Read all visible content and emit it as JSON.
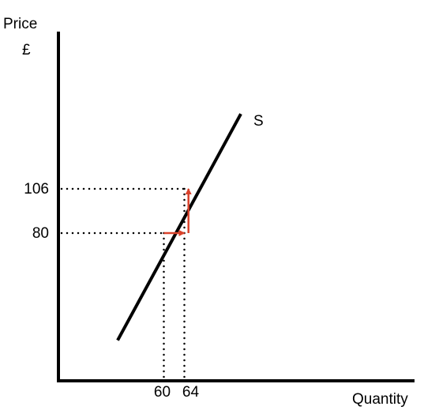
{
  "chart_data": {
    "type": "line",
    "title": "",
    "ylabel": "Price",
    "ylabel_unit": "£",
    "xlabel": "Quantity",
    "grid": false,
    "colors": {
      "axis": "#000000",
      "supply": "#000000",
      "guide": "#000000",
      "arrow": "#d9422b"
    },
    "series": [
      {
        "name": "S",
        "points": [
          {
            "x": 51,
            "y": 17
          },
          {
            "x": 75,
            "y": 150
          }
        ]
      }
    ],
    "x_ticks": [
      {
        "value": 60,
        "label": "60"
      },
      {
        "value": 64,
        "label": "64"
      }
    ],
    "y_ticks": [
      {
        "value": 80,
        "label": "80"
      },
      {
        "value": 106,
        "label": "106"
      }
    ],
    "reference_points": [
      {
        "x": 60,
        "y": 80
      },
      {
        "x": 64,
        "y": 106
      }
    ],
    "arrows": [
      {
        "from": {
          "x": 60,
          "y": 80
        },
        "to": {
          "x": 64,
          "y": 80
        }
      },
      {
        "from": {
          "x": 64.8,
          "y": 80
        },
        "to": {
          "x": 64.8,
          "y": 106
        }
      }
    ]
  }
}
